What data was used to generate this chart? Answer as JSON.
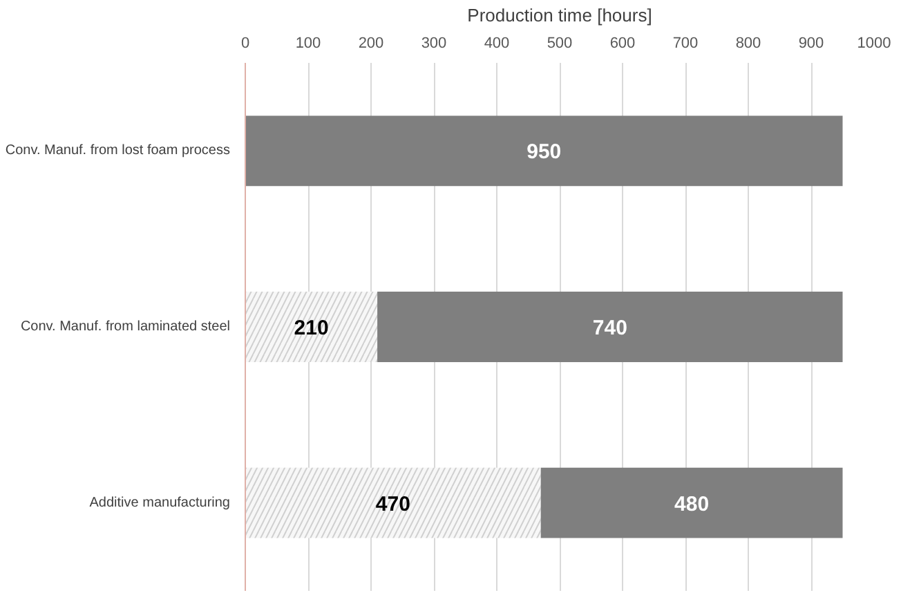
{
  "chart_data": {
    "type": "bar",
    "orientation": "horizontal",
    "stacked": true,
    "xlabel": "Production time [hours]",
    "categories": [
      "Conv. Manuf. from lost foam process",
      "Conv. Manuf. from laminated steel",
      "Additive manufacturing"
    ],
    "series": [
      {
        "color": "#d0d0d0",
        "values": [
          null,
          210,
          470
        ]
      },
      {
        "color": "#7f7f7f",
        "values": [
          950,
          740,
          480
        ]
      }
    ],
    "xlim": [
      0,
      1000
    ],
    "xticks": [
      0,
      100,
      200,
      300,
      400,
      500,
      600,
      700,
      800,
      900,
      1000
    ],
    "grid": "x",
    "data_labels": true
  }
}
